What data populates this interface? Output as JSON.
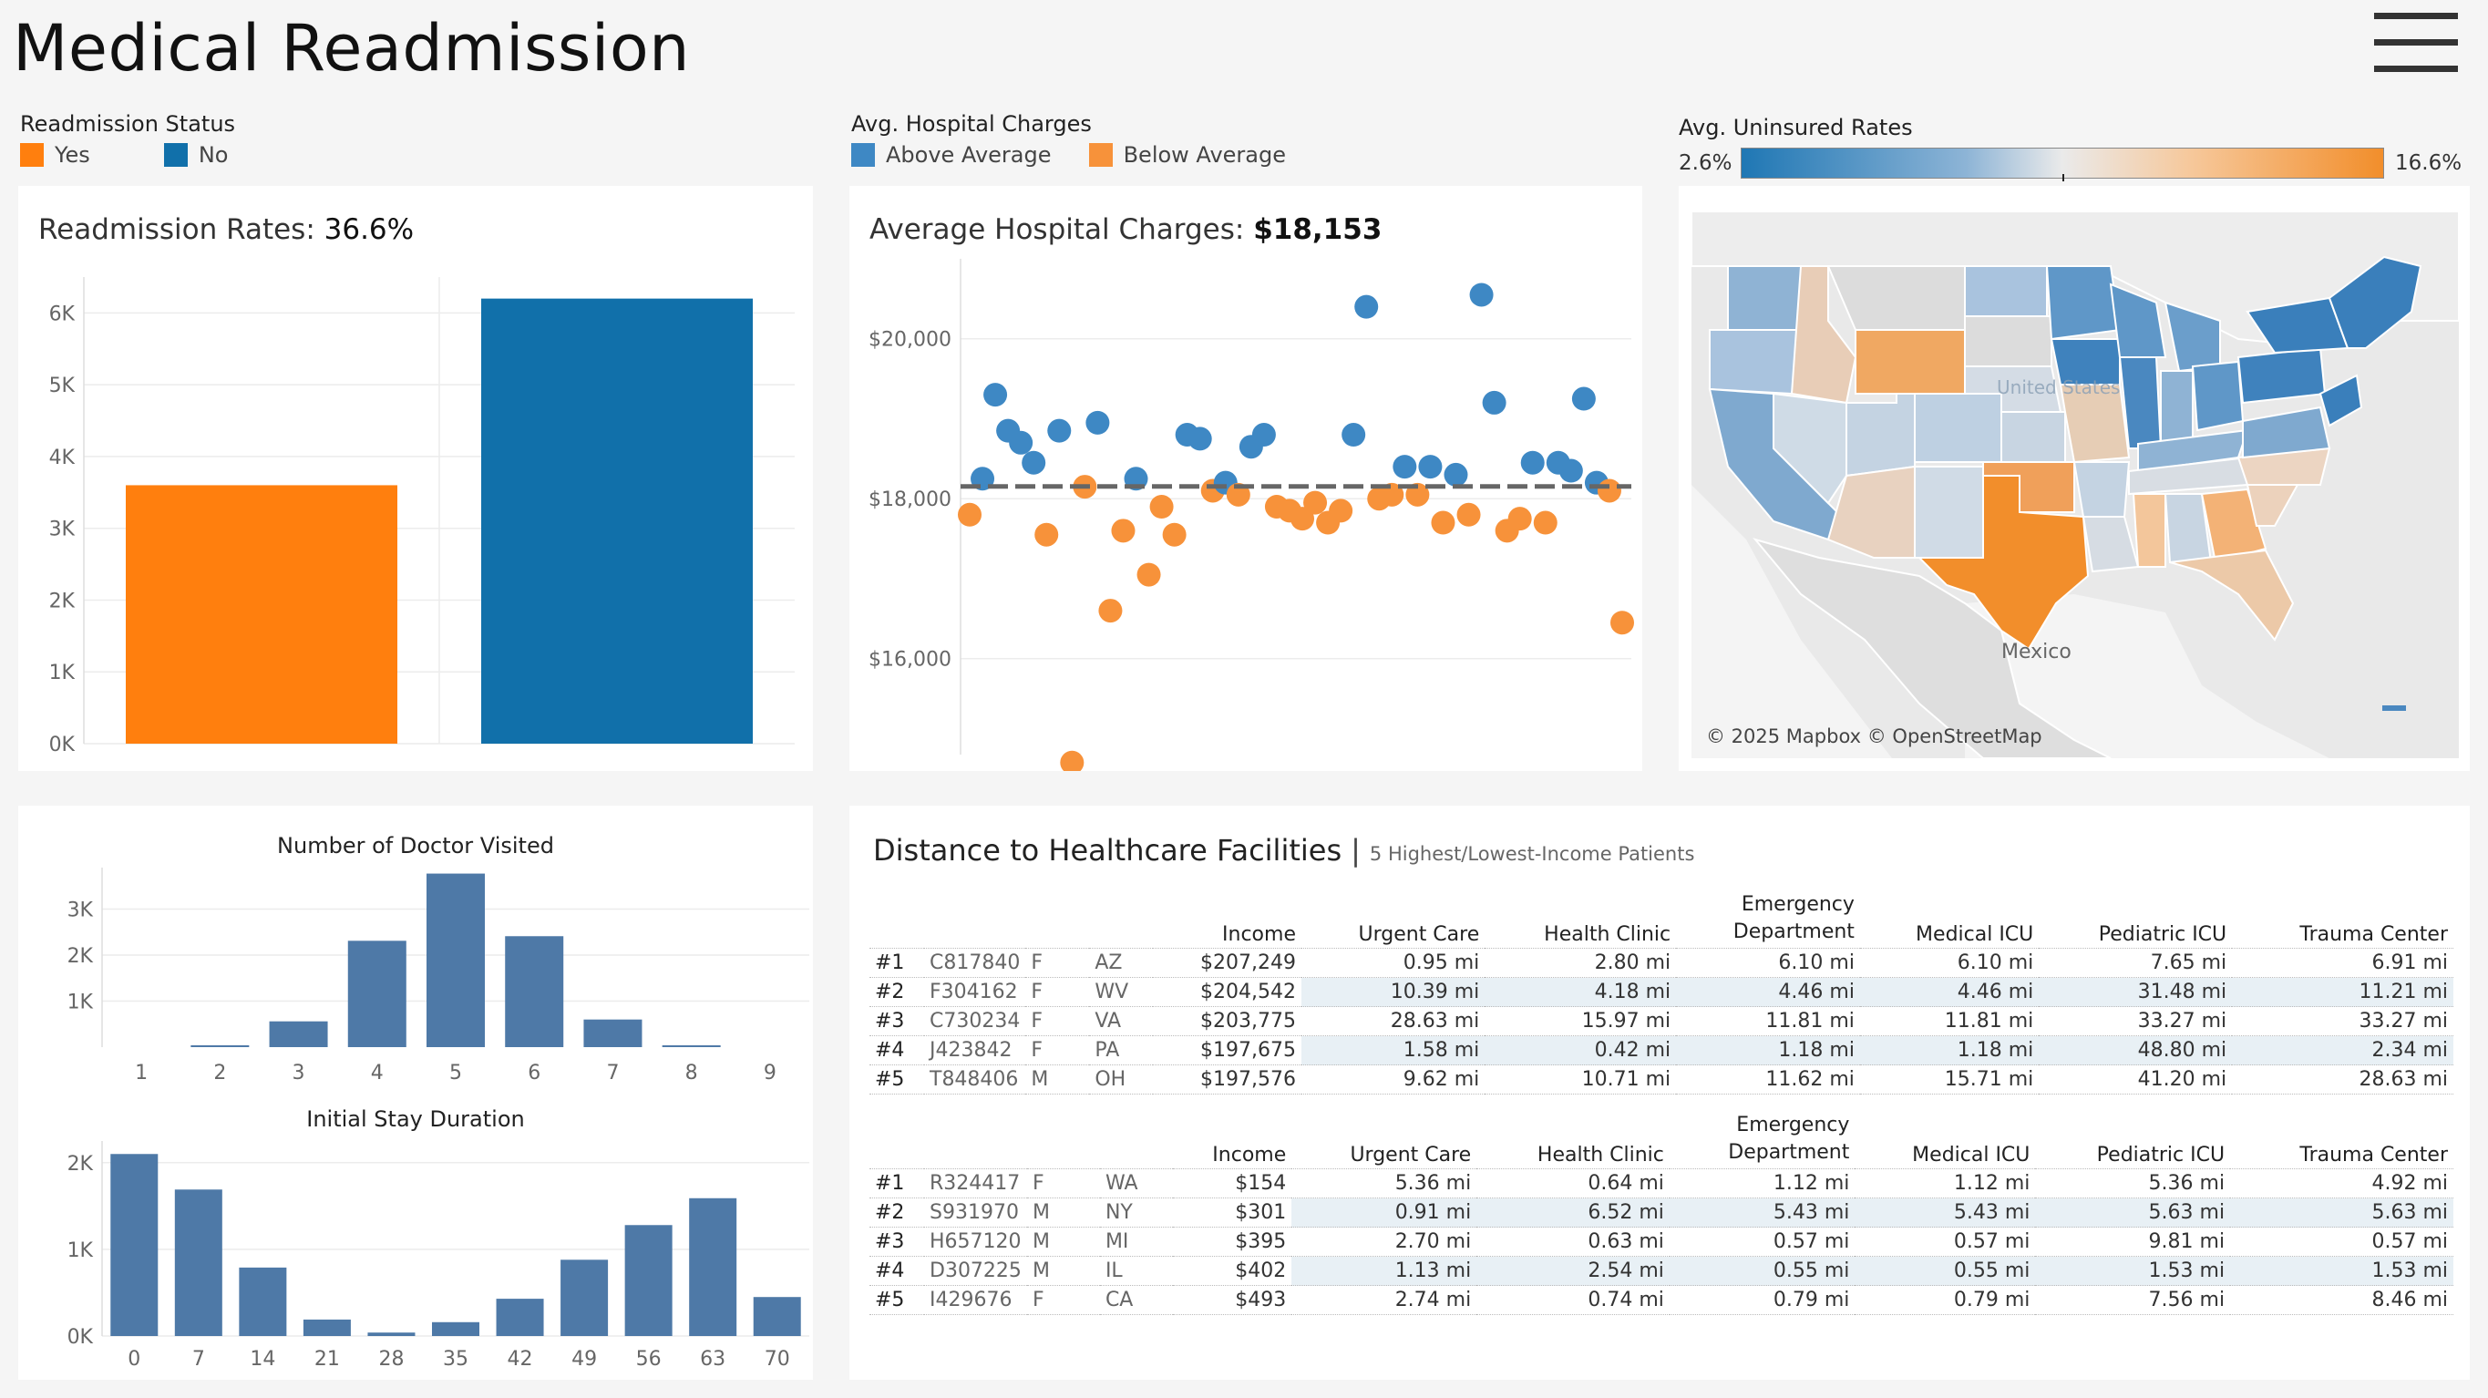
{
  "title": "Medical Readmission",
  "legend_readmission": {
    "title": "Readmission Status",
    "items": [
      {
        "label": "Yes",
        "color": "#ff7f0e"
      },
      {
        "label": "No",
        "color": "#1170aa"
      }
    ]
  },
  "legend_charges": {
    "title": "Avg. Hospital Charges",
    "items": [
      {
        "label": "Above Average",
        "color": "#3e88c4"
      },
      {
        "label": "Below Average",
        "color": "#f7923a"
      }
    ]
  },
  "legend_uninsured": {
    "title": "Avg. Uninsured Rates",
    "min_label": "2.6%",
    "max_label": "16.6%"
  },
  "readmission": {
    "title": "Readmission Rates: ",
    "value": "36.6%",
    "chart_data": {
      "type": "bar",
      "categories": [
        "Yes",
        "No"
      ],
      "values": [
        3600,
        6200
      ],
      "colors": [
        "#ff7f0e",
        "#1170aa"
      ],
      "ylim": [
        0,
        6500
      ],
      "yticks": [
        0,
        1000,
        2000,
        3000,
        4000,
        5000,
        6000
      ],
      "ytick_labels": [
        "0K",
        "1K",
        "2K",
        "3K",
        "4K",
        "5K",
        "6K"
      ]
    }
  },
  "charges": {
    "title": "Average Hospital Charges: ",
    "value": "$18,153",
    "chart_data": {
      "type": "scatter",
      "average": 18153,
      "ylim": [
        14800,
        21000
      ],
      "yticks": [
        16000,
        18000,
        20000
      ],
      "ytick_labels": [
        "$16,000",
        "$18,000",
        "$20,000"
      ],
      "points": [
        {
          "x": 1,
          "y": 17800
        },
        {
          "x": 2,
          "y": 18250
        },
        {
          "x": 3,
          "y": 19300
        },
        {
          "x": 4,
          "y": 18850
        },
        {
          "x": 5,
          "y": 18700
        },
        {
          "x": 6,
          "y": 18450
        },
        {
          "x": 7,
          "y": 17550
        },
        {
          "x": 8,
          "y": 18850
        },
        {
          "x": 9,
          "y": 14700
        },
        {
          "x": 10,
          "y": 18150
        },
        {
          "x": 11,
          "y": 18950
        },
        {
          "x": 12,
          "y": 16600
        },
        {
          "x": 13,
          "y": 17600
        },
        {
          "x": 14,
          "y": 18250
        },
        {
          "x": 15,
          "y": 17050
        },
        {
          "x": 16,
          "y": 17900
        },
        {
          "x": 17,
          "y": 17550
        },
        {
          "x": 18,
          "y": 18800
        },
        {
          "x": 19,
          "y": 18750
        },
        {
          "x": 20,
          "y": 18100
        },
        {
          "x": 21,
          "y": 18200
        },
        {
          "x": 22,
          "y": 18050
        },
        {
          "x": 23,
          "y": 18650
        },
        {
          "x": 24,
          "y": 18800
        },
        {
          "x": 25,
          "y": 17900
        },
        {
          "x": 26,
          "y": 17850
        },
        {
          "x": 27,
          "y": 17750
        },
        {
          "x": 28,
          "y": 17950
        },
        {
          "x": 29,
          "y": 17700
        },
        {
          "x": 30,
          "y": 17850
        },
        {
          "x": 31,
          "y": 18800
        },
        {
          "x": 32,
          "y": 20400
        },
        {
          "x": 33,
          "y": 18000
        },
        {
          "x": 34,
          "y": 18050
        },
        {
          "x": 35,
          "y": 18400
        },
        {
          "x": 36,
          "y": 18050
        },
        {
          "x": 37,
          "y": 18400
        },
        {
          "x": 38,
          "y": 17700
        },
        {
          "x": 39,
          "y": 18300
        },
        {
          "x": 40,
          "y": 17800
        },
        {
          "x": 41,
          "y": 20550
        },
        {
          "x": 42,
          "y": 19200
        },
        {
          "x": 43,
          "y": 17600
        },
        {
          "x": 44,
          "y": 17750
        },
        {
          "x": 45,
          "y": 18450
        },
        {
          "x": 46,
          "y": 17700
        },
        {
          "x": 47,
          "y": 18450
        },
        {
          "x": 48,
          "y": 18350
        },
        {
          "x": 49,
          "y": 19250
        },
        {
          "x": 50,
          "y": 18200
        },
        {
          "x": 51,
          "y": 18100
        },
        {
          "x": 52,
          "y": 16450
        }
      ],
      "above_color": "#3e88c4",
      "below_color": "#f7923a"
    }
  },
  "map": {
    "label_mexico": "Mexico",
    "label_us": "United States",
    "attribution": "© 2025 Mapbox © OpenStreetMap",
    "low_color": "#1f77b4",
    "high_color": "#f28e2b"
  },
  "doctors": {
    "title": "Number of Doctor Visited",
    "chart_data": {
      "type": "bar",
      "categories": [
        "1",
        "2",
        "3",
        "4",
        "5",
        "6",
        "7",
        "8",
        "9"
      ],
      "values": [
        0,
        40,
        560,
        2310,
        3770,
        2410,
        600,
        30,
        0
      ],
      "ylim": [
        0,
        3900
      ],
      "yticks": [
        1000,
        2000,
        3000
      ],
      "ytick_labels": [
        "1K",
        "2K",
        "3K"
      ],
      "color": "#4e79a7"
    }
  },
  "stay": {
    "title": "Initial Stay Duration",
    "chart_data": {
      "type": "bar",
      "categories": [
        "0",
        "7",
        "14",
        "21",
        "28",
        "35",
        "42",
        "49",
        "56",
        "63",
        "70"
      ],
      "values": [
        2100,
        1690,
        790,
        190,
        40,
        160,
        430,
        880,
        1280,
        1590,
        450
      ],
      "ylim": [
        0,
        2250
      ],
      "yticks": [
        0,
        1000,
        2000
      ],
      "ytick_labels": [
        "0K",
        "1K",
        "2K"
      ],
      "color": "#4e79a7"
    }
  },
  "distance": {
    "title": "Distance to Healthcare Facilities",
    "subtitle": "5 Highest/Lowest-Income Patients",
    "columns": [
      "Income",
      "Urgent Care",
      "Health Clinic",
      "Emergency Department",
      "Medical ICU",
      "Pediatric ICU",
      "Trauma Center"
    ],
    "col_emergency_top": "Emergency",
    "col_emergency_bottom": "Department",
    "high": [
      {
        "rank": "#1",
        "id": "C817840",
        "sex": "F",
        "state": "AZ",
        "income": "$207,249",
        "uc": "0.95 mi",
        "hc": "2.80 mi",
        "ed": "6.10 mi",
        "micu": "6.10 mi",
        "picu": "7.65 mi",
        "tc": "6.91 mi"
      },
      {
        "rank": "#2",
        "id": "F304162",
        "sex": "F",
        "state": "WV",
        "income": "$204,542",
        "uc": "10.39 mi",
        "hc": "4.18 mi",
        "ed": "4.46 mi",
        "micu": "4.46 mi",
        "picu": "31.48 mi",
        "tc": "11.21 mi"
      },
      {
        "rank": "#3",
        "id": "C730234",
        "sex": "F",
        "state": "VA",
        "income": "$203,775",
        "uc": "28.63 mi",
        "hc": "15.97 mi",
        "ed": "11.81 mi",
        "micu": "11.81 mi",
        "picu": "33.27 mi",
        "tc": "33.27 mi"
      },
      {
        "rank": "#4",
        "id": "J423842",
        "sex": "F",
        "state": "PA",
        "income": "$197,675",
        "uc": "1.58 mi",
        "hc": "0.42 mi",
        "ed": "1.18 mi",
        "micu": "1.18 mi",
        "picu": "48.80 mi",
        "tc": "2.34 mi"
      },
      {
        "rank": "#5",
        "id": "T848406",
        "sex": "M",
        "state": "OH",
        "income": "$197,576",
        "uc": "9.62 mi",
        "hc": "10.71 mi",
        "ed": "11.62 mi",
        "micu": "15.71 mi",
        "picu": "41.20 mi",
        "tc": "28.63 mi"
      }
    ],
    "low": [
      {
        "rank": "#1",
        "id": "R324417",
        "sex": "F",
        "state": "WA",
        "income": "$154",
        "uc": "5.36 mi",
        "hc": "0.64 mi",
        "ed": "1.12 mi",
        "micu": "1.12 mi",
        "picu": "5.36 mi",
        "tc": "4.92 mi"
      },
      {
        "rank": "#2",
        "id": "S931970",
        "sex": "M",
        "state": "NY",
        "income": "$301",
        "uc": "0.91 mi",
        "hc": "6.52 mi",
        "ed": "5.43 mi",
        "micu": "5.43 mi",
        "picu": "5.63 mi",
        "tc": "5.63 mi"
      },
      {
        "rank": "#3",
        "id": "H657120",
        "sex": "M",
        "state": "MI",
        "income": "$395",
        "uc": "2.70 mi",
        "hc": "0.63 mi",
        "ed": "0.57 mi",
        "micu": "0.57 mi",
        "picu": "9.81 mi",
        "tc": "0.57 mi"
      },
      {
        "rank": "#4",
        "id": "D307225",
        "sex": "M",
        "state": "IL",
        "income": "$402",
        "uc": "1.13 mi",
        "hc": "2.54 mi",
        "ed": "0.55 mi",
        "micu": "0.55 mi",
        "picu": "1.53 mi",
        "tc": "1.53 mi"
      },
      {
        "rank": "#5",
        "id": "I429676",
        "sex": "F",
        "state": "CA",
        "income": "$493",
        "uc": "2.74 mi",
        "hc": "0.74 mi",
        "ed": "0.79 mi",
        "micu": "0.79 mi",
        "picu": "7.56 mi",
        "tc": "8.46 mi"
      }
    ]
  }
}
